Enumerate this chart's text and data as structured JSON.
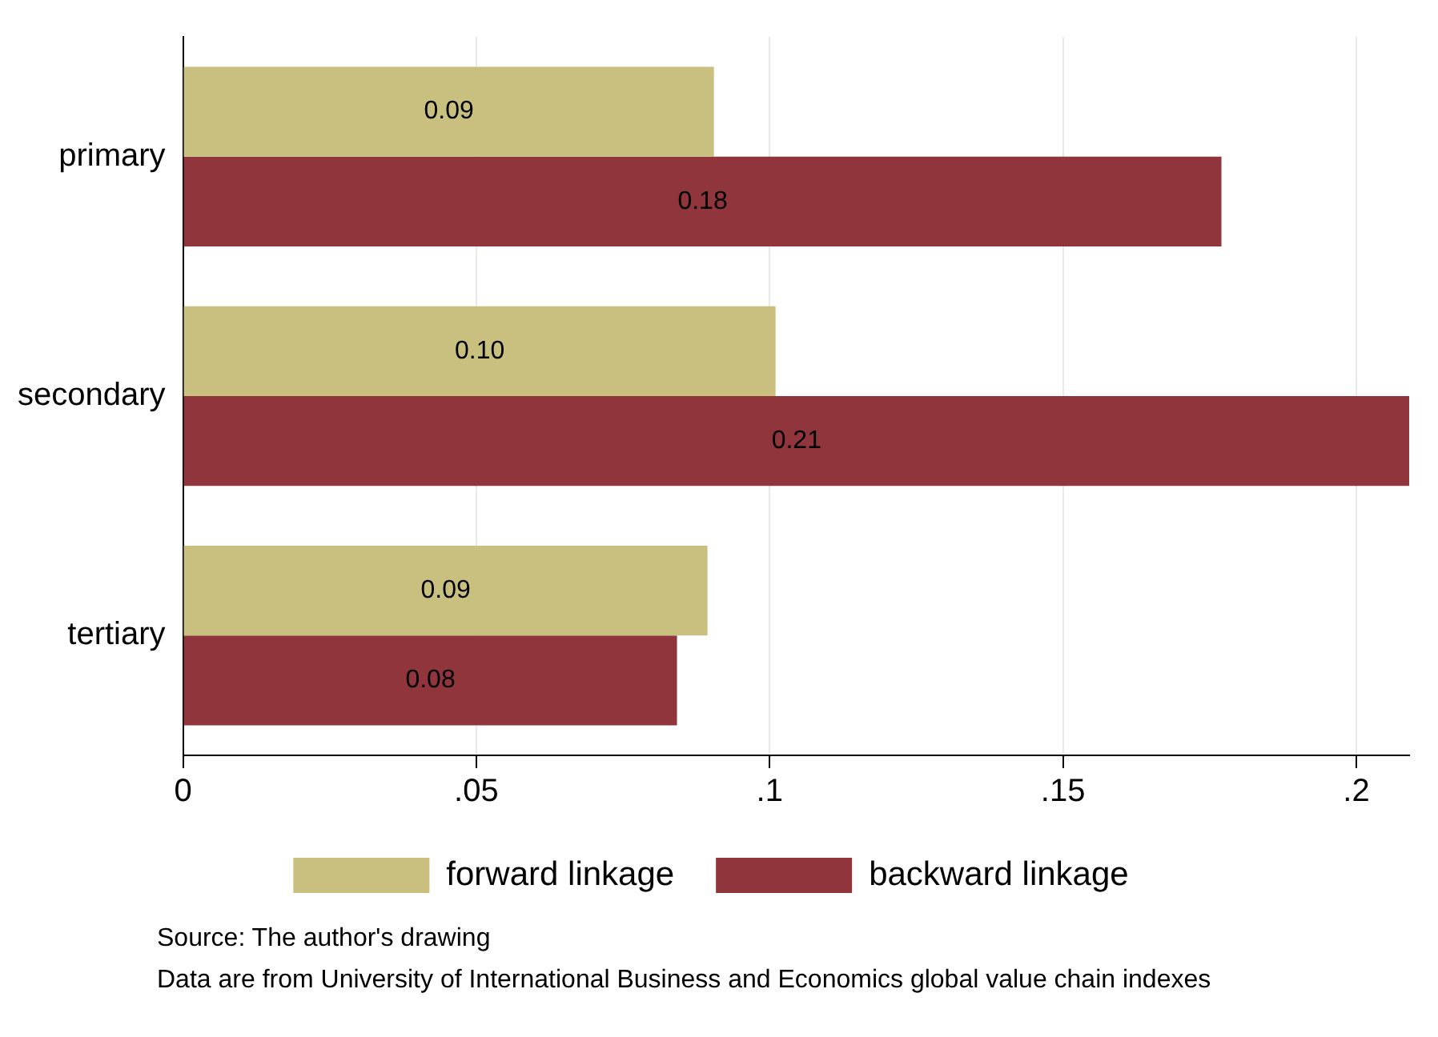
{
  "chart_data": {
    "type": "bar",
    "orientation": "horizontal",
    "categories": [
      "primary",
      "secondary",
      "tertiary"
    ],
    "series": [
      {
        "name": "forward linkage",
        "color": "#c9c07f",
        "values": [
          0.0905,
          0.101,
          0.0894
        ],
        "value_labels": [
          "0.09",
          "0.10",
          "0.09"
        ]
      },
      {
        "name": "backward linkage",
        "color": "#8f353b",
        "values": [
          0.177,
          0.209,
          0.0842
        ],
        "value_labels": [
          "0.18",
          "0.21",
          "0.08"
        ]
      }
    ],
    "xlim": [
      0,
      0.209
    ],
    "xticks": [
      0,
      {
        "value": 0.05,
        "label": ".05"
      },
      {
        "value": 0.1,
        "label": ".1"
      },
      {
        "value": 0.15,
        "label": ".15"
      },
      {
        "value": 0.2,
        "label": ".2"
      }
    ],
    "grid": "x",
    "legend": "bottom",
    "annotations": [
      "Source: The author's drawing",
      "Data are from University of International Business and Economics global value chain indexes"
    ]
  }
}
